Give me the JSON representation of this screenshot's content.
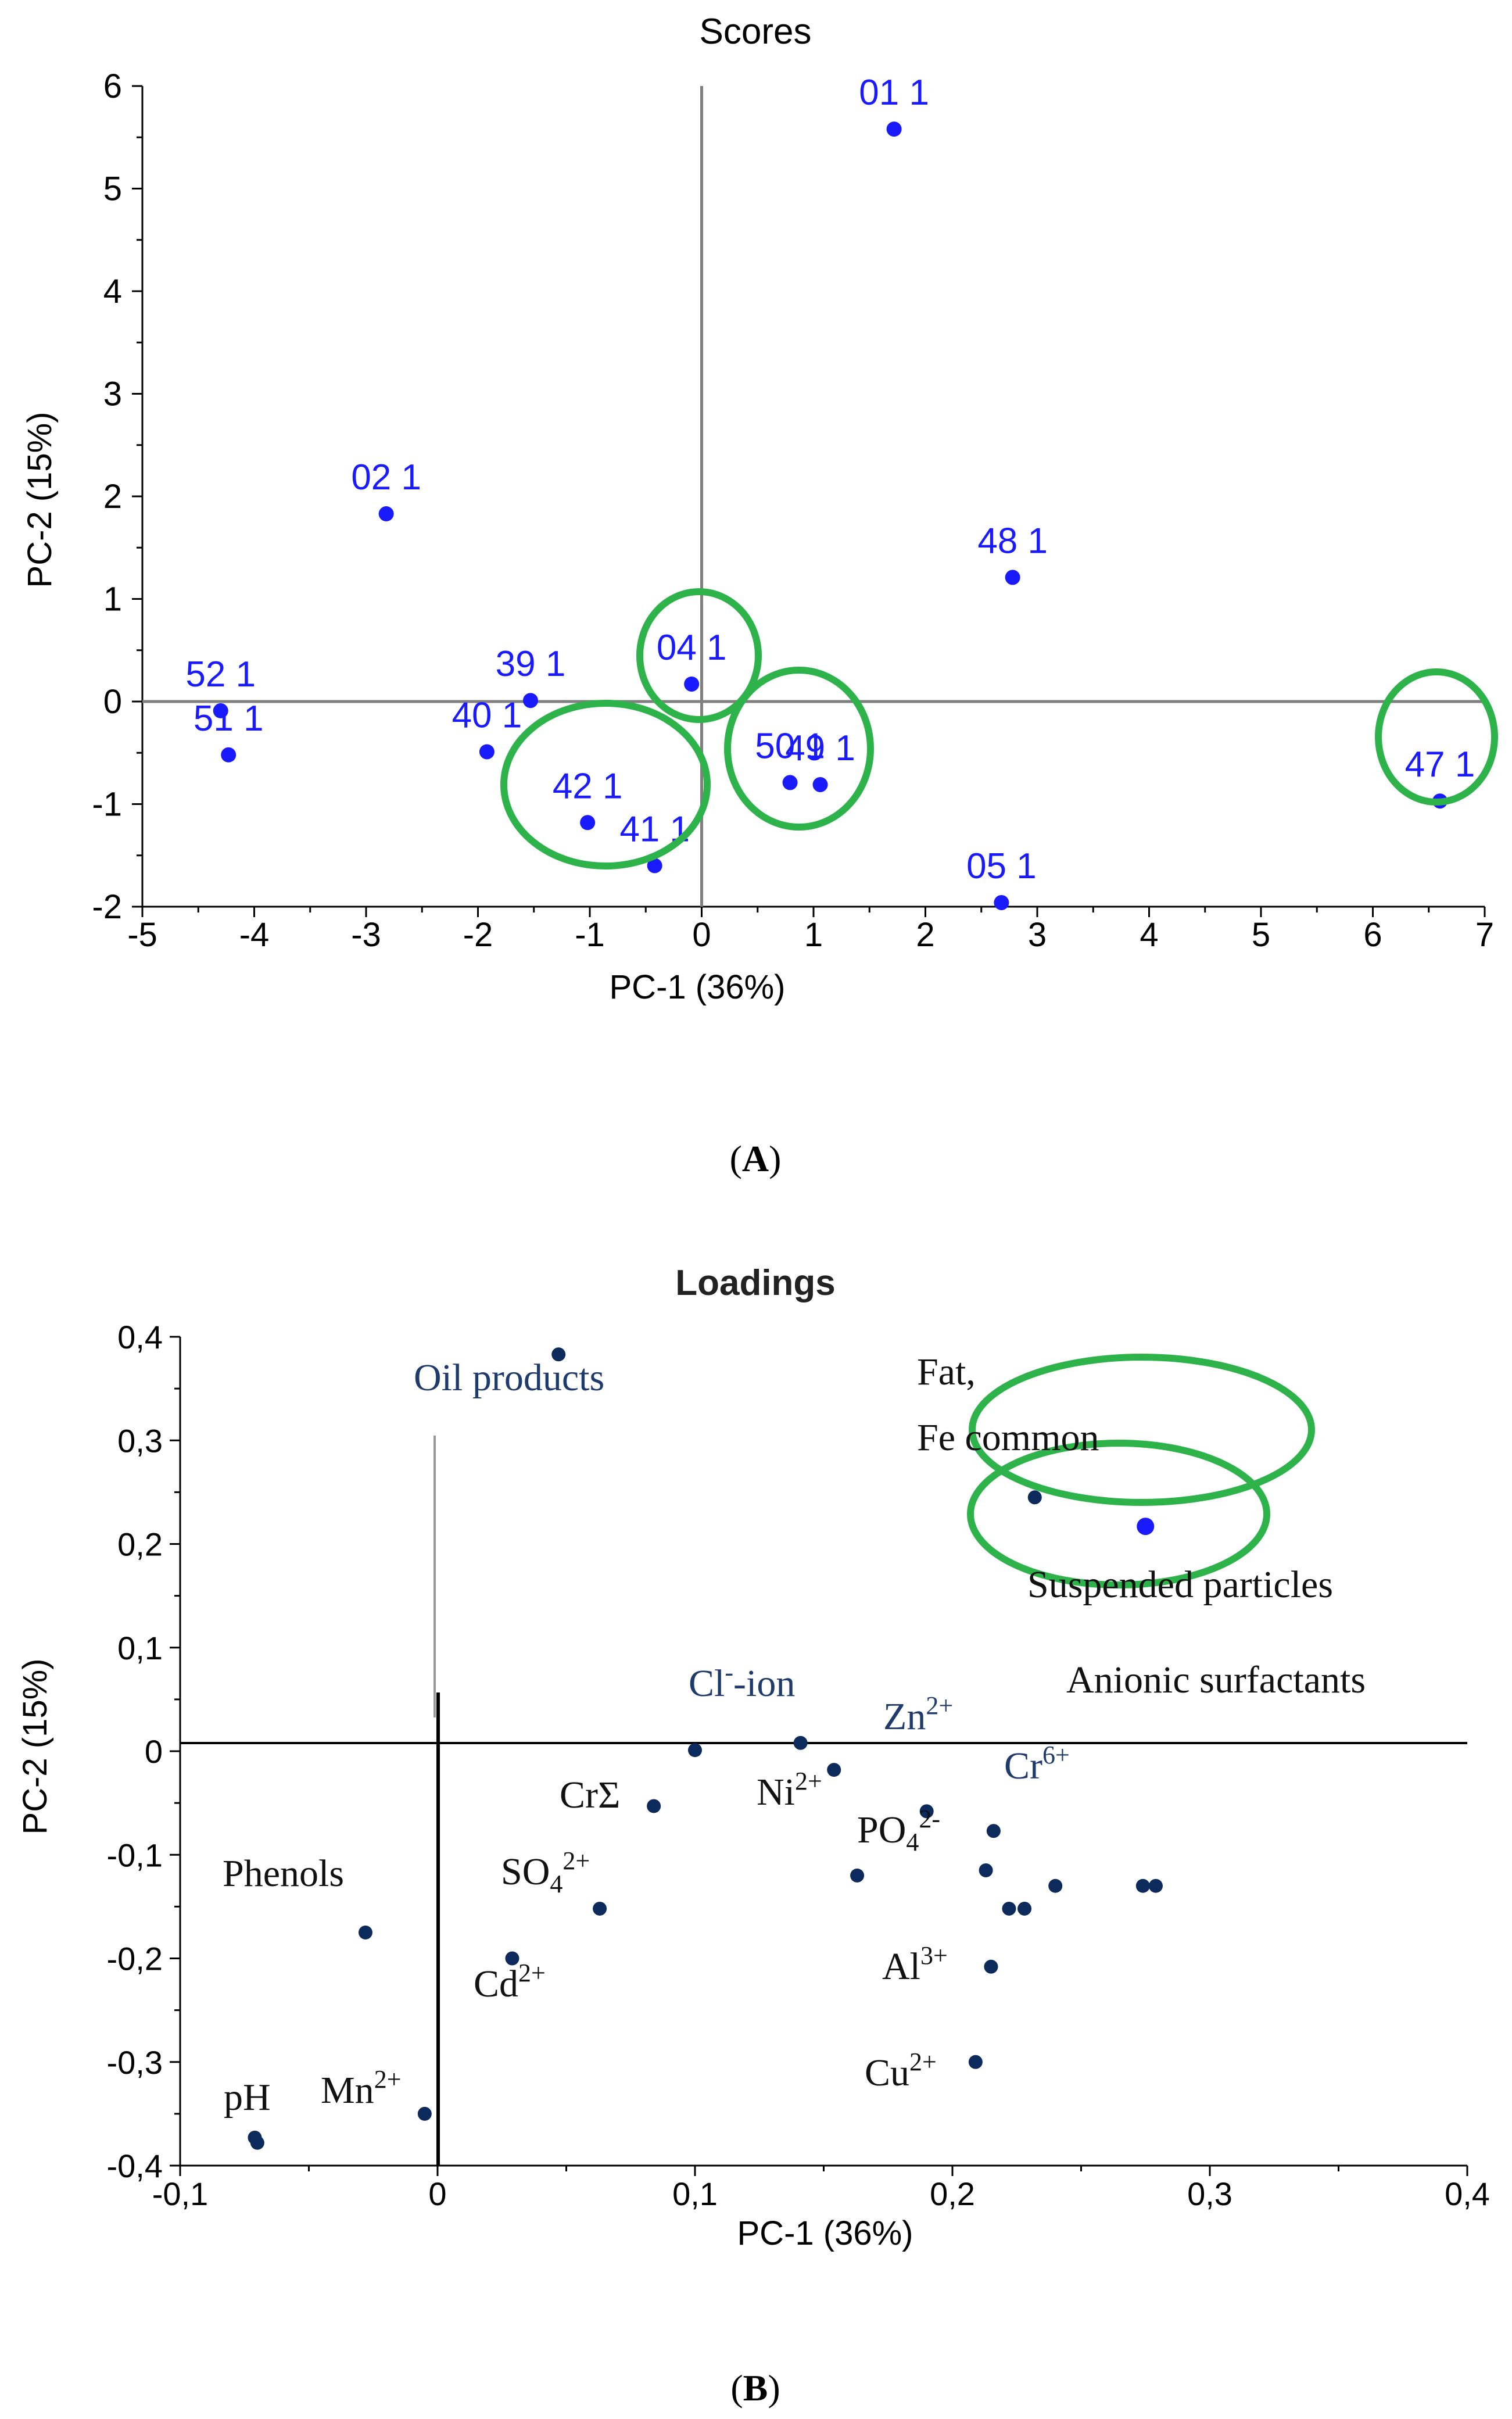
{
  "chart_data": [
    {
      "type": "scatter",
      "title": "Scores",
      "xlabel": "PC-1 (36%)",
      "ylabel": "PC-2 (15%)",
      "xlim": [
        -5,
        7
      ],
      "ylim": [
        -2,
        6
      ],
      "xticks": [
        "-5",
        "-4",
        "-3",
        "-2",
        "-1",
        "0",
        "1",
        "2",
        "3",
        "4",
        "5",
        "6",
        "7"
      ],
      "yticks": [
        "-2",
        "-1",
        "0",
        "1",
        "2",
        "3",
        "4",
        "5",
        "6"
      ],
      "points": [
        {
          "label": "01 1",
          "x": 1.72,
          "y": 5.58
        },
        {
          "label": "02 1",
          "x": -2.82,
          "y": 1.83
        },
        {
          "label": "48 1",
          "x": 2.78,
          "y": 1.21
        },
        {
          "label": "52 1",
          "x": -4.3,
          "y": -0.09
        },
        {
          "label": "51 1",
          "x": -4.23,
          "y": -0.52
        },
        {
          "label": "39 1",
          "x": -1.53,
          "y": 0.01
        },
        {
          "label": "40 1",
          "x": -1.92,
          "y": -0.49
        },
        {
          "label": "04 1",
          "x": -0.09,
          "y": 0.17
        },
        {
          "label": "42 1",
          "x": -1.02,
          "y": -1.18
        },
        {
          "label": "41 1",
          "x": -0.42,
          "y": -1.6
        },
        {
          "label": "50 1",
          "x": 0.79,
          "y": -0.79
        },
        {
          "label": "49 1",
          "x": 1.06,
          "y": -0.81
        },
        {
          "label": "05 1",
          "x": 2.68,
          "y": -1.96
        },
        {
          "label": "47 1",
          "x": 6.6,
          "y": -0.97
        }
      ],
      "highlight_groups": [
        [
          "04 1"
        ],
        [
          "42 1",
          "41 1"
        ],
        [
          "50 1",
          "49 1"
        ],
        [
          "47 1"
        ]
      ],
      "caption": "A",
      "colors": {
        "points": "#1a1aff",
        "labels": "#1a1aff",
        "circles": "#2db34a",
        "axes": "#808080"
      }
    },
    {
      "type": "scatter",
      "title": "Loadings",
      "xlabel": "PC-1 (36%)",
      "ylabel": "PC-2 (15%)",
      "xlim": [
        -0.1,
        0.4
      ],
      "ylim": [
        -0.4,
        0.4
      ],
      "xticks": [
        "-0,1",
        "0",
        "0,1",
        "0,2",
        "0,3",
        "0,4"
      ],
      "yticks": [
        "-0,4",
        "-0,3",
        "-0,2",
        "-0,1",
        "0",
        "0,1",
        "0,2",
        "0,3",
        "0,4"
      ],
      "points": [
        {
          "x": 0.047,
          "y": 0.383
        },
        {
          "x": 0.232,
          "y": 0.245
        },
        {
          "x": 0.275,
          "y": 0.217
        },
        {
          "x": 0.1,
          "y": 0.001
        },
        {
          "x": 0.141,
          "y": 0.008
        },
        {
          "x": 0.154,
          "y": -0.018
        },
        {
          "x": 0.084,
          "y": -0.053
        },
        {
          "x": 0.063,
          "y": -0.152
        },
        {
          "x": 0.029,
          "y": -0.2
        },
        {
          "x": -0.028,
          "y": -0.175
        },
        {
          "x": -0.005,
          "y": -0.35
        },
        {
          "x": -0.071,
          "y": -0.373
        },
        {
          "x": -0.07,
          "y": -0.378
        },
        {
          "x": 0.163,
          "y": -0.12
        },
        {
          "x": 0.19,
          "y": -0.058
        },
        {
          "x": 0.216,
          "y": -0.077
        },
        {
          "x": 0.213,
          "y": -0.115
        },
        {
          "x": 0.222,
          "y": -0.152
        },
        {
          "x": 0.228,
          "y": -0.152
        },
        {
          "x": 0.24,
          "y": -0.13
        },
        {
          "x": 0.274,
          "y": -0.13
        },
        {
          "x": 0.279,
          "y": -0.13
        },
        {
          "x": 0.215,
          "y": -0.208
        },
        {
          "x": 0.209,
          "y": -0.3
        }
      ],
      "variables": [
        {
          "text": "Oil products",
          "sup": "",
          "color": "#1f3b6e"
        },
        {
          "text": "Fat,",
          "sup": "",
          "color": "#111111"
        },
        {
          "text": "Fe common",
          "sup": "",
          "color": "#111111"
        },
        {
          "text": "Suspended particles",
          "sup": "",
          "color": "#111111"
        },
        {
          "text": "Anionic surfactants",
          "sup": "",
          "color": "#111111"
        },
        {
          "text": "Cl",
          "sup": "-",
          "tail": "-ion",
          "color": "#1f3b6e"
        },
        {
          "text": "Zn",
          "sup": "2+",
          "color": "#1f3b6e"
        },
        {
          "text": "Cr",
          "sup": "6+",
          "color": "#1f3b6e"
        },
        {
          "text": "Ni",
          "sup": "2+",
          "color": "#111111"
        },
        {
          "text": "CrΣ",
          "sup": "",
          "color": "#111111"
        },
        {
          "text": "PO",
          "sub": "4",
          "sup": "2-",
          "color": "#111111"
        },
        {
          "text": "SO",
          "sub": "4",
          "sup": "2+",
          "color": "#111111"
        },
        {
          "text": "Phenols",
          "sup": "",
          "color": "#111111"
        },
        {
          "text": "Cd",
          "sup": "2+",
          "color": "#111111"
        },
        {
          "text": "Al",
          "sup": "3+",
          "color": "#111111"
        },
        {
          "text": "Cu",
          "sup": "2+",
          "color": "#111111"
        },
        {
          "text": "pH",
          "sup": "",
          "color": "#111111"
        },
        {
          "text": "Mn",
          "sup": "2+",
          "color": "#111111"
        }
      ],
      "highlight_groups": [
        [
          "Fe common"
        ],
        [
          "Suspended particles"
        ]
      ],
      "caption": "B",
      "colors": {
        "points": "#0d2a5c",
        "highlight_point": "#1a1aff",
        "circles": "#2db34a",
        "axes": "#000000"
      }
    }
  ]
}
